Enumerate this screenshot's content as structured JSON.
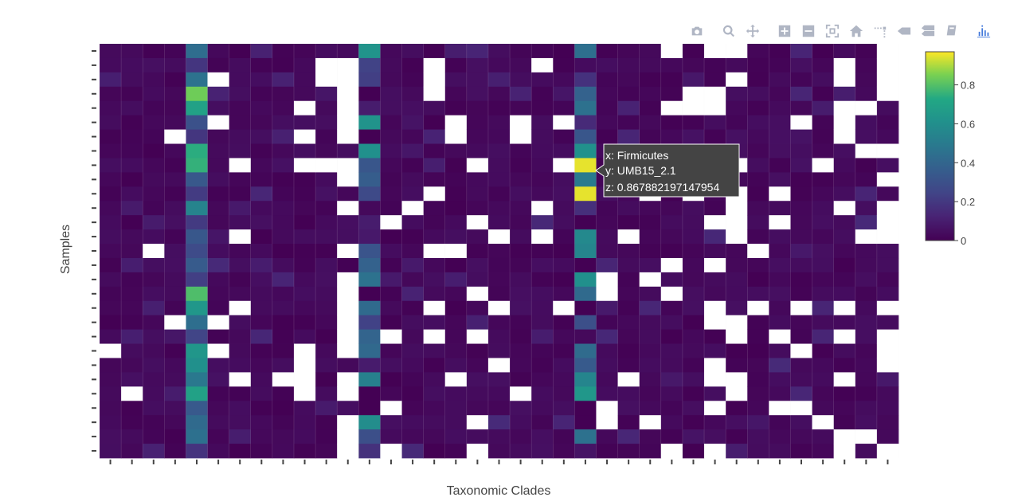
{
  "chart_data": {
    "type": "heatmap",
    "xlabel": "Taxonomic Clades",
    "ylabel": "Samples",
    "colorscale": "Viridis",
    "zrange": [
      0,
      0.97
    ],
    "colorbar_ticks": [
      "0",
      "0.2",
      "0.4",
      "0.6",
      "0.8"
    ],
    "colorbar_tick_values": [
      0,
      0.2,
      0.4,
      0.6,
      0.8
    ],
    "n_columns": 37,
    "n_rows": 29,
    "missing_value_color": "#ffffff",
    "highlight_columns": [
      {
        "column": 4,
        "mean": 0.5
      },
      {
        "column": 12,
        "mean": 0.3
      },
      {
        "column": 22,
        "mean": 0.3
      }
    ],
    "hover": {
      "x_line": "x: Firmicutes",
      "y_line": "y: UMB15_2.1",
      "z_line": "z: 0.867882197147954",
      "x": "Firmicutes",
      "y": "UMB15_2.1",
      "z": 0.867882197147954
    }
  },
  "modebar": {
    "buttons": [
      "camera-icon",
      "zoom-icon",
      "pan-icon",
      "zoom-in-icon",
      "zoom-out-icon",
      "autoscale-icon",
      "reset-axes-icon",
      "spike-lines-icon",
      "hover-closest-icon",
      "hover-compare-icon",
      "edit-chart-studio-icon"
    ],
    "logo": "plotly-logo-icon"
  },
  "colors": {
    "background": "#ffffff",
    "axis_text": "#444444",
    "modebar_icon": "#b0b6c4",
    "modebar_logo": "#447adb",
    "hover_bg": "#444444"
  }
}
